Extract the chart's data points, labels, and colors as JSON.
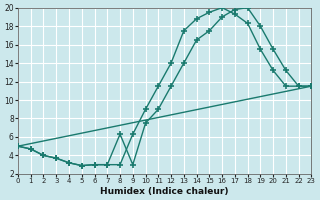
{
  "xlabel": "Humidex (Indice chaleur)",
  "bg_color": "#cce8ec",
  "grid_color": "#ffffff",
  "line_color": "#1a7a6e",
  "xlim": [
    0,
    23
  ],
  "ylim": [
    2,
    20
  ],
  "xticks": [
    0,
    1,
    2,
    3,
    4,
    5,
    6,
    7,
    8,
    9,
    10,
    11,
    12,
    13,
    14,
    15,
    16,
    17,
    18,
    19,
    20,
    21,
    22,
    23
  ],
  "yticks": [
    2,
    4,
    6,
    8,
    10,
    12,
    14,
    16,
    18,
    20
  ],
  "line1_x": [
    0,
    1,
    2,
    3,
    4,
    5,
    6,
    7,
    8,
    9,
    10,
    11,
    12,
    13,
    14,
    15,
    16,
    17,
    18,
    19,
    20,
    21,
    22,
    23
  ],
  "line1_y": [
    5.0,
    4.7,
    4.0,
    3.7,
    3.2,
    2.9,
    3.0,
    3.0,
    3.0,
    6.3,
    9.0,
    11.5,
    14.0,
    17.5,
    18.8,
    19.5,
    20.0,
    19.3,
    18.3,
    15.5,
    13.2,
    11.5,
    11.5,
    11.5
  ],
  "line2_x": [
    0,
    1,
    2,
    3,
    4,
    5,
    6,
    7,
    8,
    9,
    10,
    11,
    12,
    13,
    14,
    15,
    16,
    17,
    18,
    19,
    20,
    21,
    22,
    23
  ],
  "line2_y": [
    5.0,
    4.7,
    4.0,
    3.7,
    3.2,
    2.9,
    3.0,
    3.0,
    6.3,
    3.0,
    7.5,
    9.0,
    11.5,
    14.0,
    16.5,
    17.5,
    19.0,
    19.8,
    20.0,
    18.0,
    15.5,
    13.2,
    11.5,
    11.5
  ],
  "line3_x": [
    0,
    23
  ],
  "line3_y": [
    5.0,
    11.5
  ],
  "marker": "+",
  "marker_size": 4.0,
  "linewidth": 1.0
}
